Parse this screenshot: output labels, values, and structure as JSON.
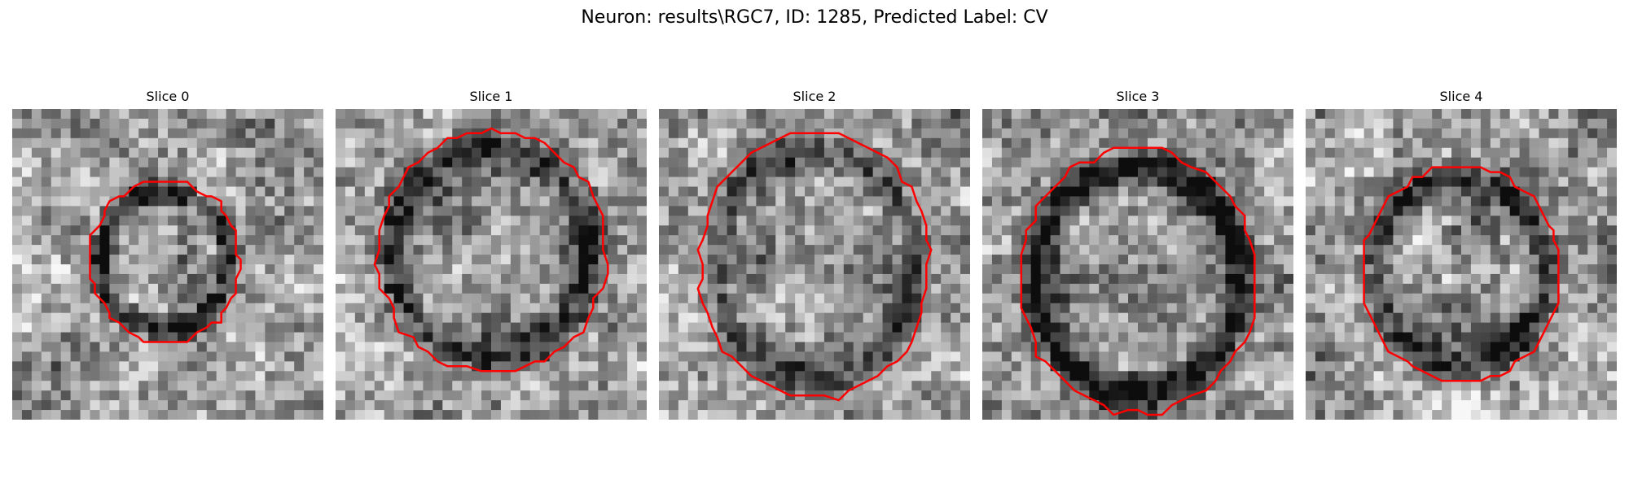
{
  "figure": {
    "title": "Neuron: results\\RGC7, ID: 1285, Predicted Label: CV"
  },
  "panels": [
    {
      "title": "Slice 0",
      "contour_color": "#ff0000",
      "colormap": "grayscale"
    },
    {
      "title": "Slice 1",
      "contour_color": "#ff0000",
      "colormap": "grayscale"
    },
    {
      "title": "Slice 2",
      "contour_color": "#ff0000",
      "colormap": "grayscale"
    },
    {
      "title": "Slice 3",
      "contour_color": "#ff0000",
      "colormap": "grayscale"
    },
    {
      "title": "Slice 4",
      "contour_color": "#ff0000",
      "colormap": "grayscale"
    }
  ]
}
